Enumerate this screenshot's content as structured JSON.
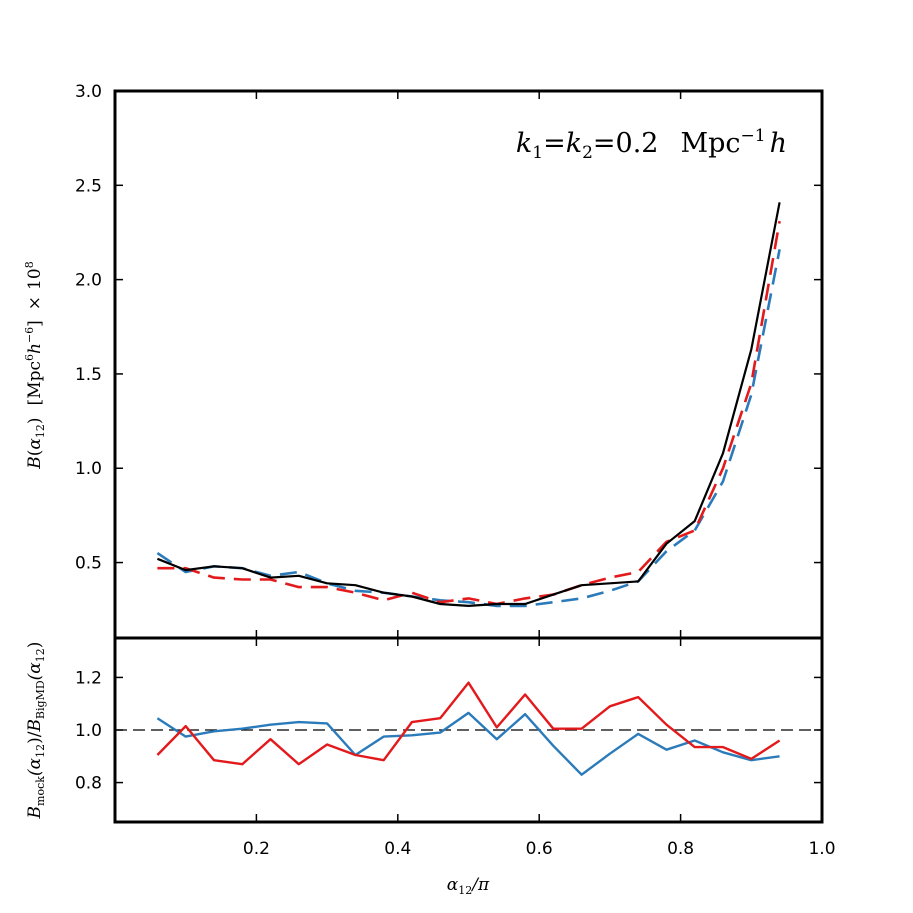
{
  "chart_data": [
    {
      "panel": "top",
      "type": "line",
      "annotation": {
        "k1": "k",
        "k1_sub": "1",
        "eq1": "=",
        "k2": "k",
        "k2_sub": "2",
        "eq2": "=0.2",
        "unit": "Mpc",
        "unit_exp": "−1",
        "unit_h": "h"
      },
      "ylabel": {
        "B": "B",
        "open": "(",
        "alpha": "α",
        "sub": "12",
        "close": ")",
        "unit_open": "[Mpc",
        "exp6": "6",
        "h": "h",
        "expm6": "−6",
        "unit_close": "]",
        "times": "×",
        "ten": "10",
        "exp8": "8"
      },
      "xlim": [
        0.0,
        1.0
      ],
      "ylim": [
        0.1,
        3.0
      ],
      "yticks": [
        "0.5",
        "1.0",
        "1.5",
        "2.0",
        "2.5",
        "3.0"
      ],
      "ytick_values": [
        0.5,
        1.0,
        1.5,
        2.0,
        2.5,
        3.0
      ],
      "x": [
        0.06,
        0.1,
        0.14,
        0.18,
        0.22,
        0.26,
        0.3,
        0.34,
        0.38,
        0.42,
        0.46,
        0.5,
        0.54,
        0.58,
        0.62,
        0.66,
        0.7,
        0.74,
        0.78,
        0.82,
        0.86,
        0.9,
        0.94
      ],
      "series": [
        {
          "name": "BigMD",
          "color": "#000000",
          "dash": "solid",
          "values": [
            0.52,
            0.46,
            0.48,
            0.47,
            0.42,
            0.43,
            0.39,
            0.38,
            0.34,
            0.32,
            0.28,
            0.27,
            0.28,
            0.28,
            0.33,
            0.38,
            0.39,
            0.4,
            0.6,
            0.72,
            1.08,
            1.63,
            2.41
          ]
        },
        {
          "name": "mock (red)",
          "color": "#e31a1c",
          "dash": "dashed",
          "values": [
            0.47,
            0.47,
            0.42,
            0.41,
            0.41,
            0.37,
            0.37,
            0.34,
            0.3,
            0.34,
            0.29,
            0.31,
            0.28,
            0.31,
            0.33,
            0.38,
            0.42,
            0.45,
            0.61,
            0.67,
            1.0,
            1.45,
            2.31
          ]
        },
        {
          "name": "mock (blue)",
          "color": "#2b7bba",
          "dash": "dashed",
          "values": [
            0.55,
            0.45,
            0.48,
            0.47,
            0.43,
            0.45,
            0.39,
            0.35,
            0.34,
            0.32,
            0.3,
            0.29,
            0.27,
            0.27,
            0.29,
            0.31,
            0.35,
            0.4,
            0.56,
            0.67,
            0.93,
            1.39,
            2.16
          ]
        }
      ]
    },
    {
      "panel": "bottom",
      "type": "line",
      "ylabel": {
        "B1": "B",
        "sub1": "mock",
        "mid": "(α",
        "s12a": "12",
        "slash": ")/",
        "B2": "B",
        "sub2": "BigMD",
        "end": "(α",
        "s12b": "12",
        "close": ")"
      },
      "xlabel": {
        "alpha": "α",
        "sub": "12",
        "rest": "/π"
      },
      "xlim": [
        0.0,
        1.0
      ],
      "ylim": [
        0.65,
        1.35
      ],
      "xticks": [
        "0.2",
        "0.4",
        "0.6",
        "0.8",
        "1.0"
      ],
      "xtick_values": [
        0.2,
        0.4,
        0.6,
        0.8,
        1.0
      ],
      "yticks": [
        "0.8",
        "1.0",
        "1.2"
      ],
      "ytick_values": [
        0.8,
        1.0,
        1.2
      ],
      "reference_line": 1.0,
      "x": [
        0.06,
        0.1,
        0.14,
        0.18,
        0.22,
        0.26,
        0.3,
        0.34,
        0.38,
        0.42,
        0.46,
        0.5,
        0.54,
        0.58,
        0.62,
        0.66,
        0.7,
        0.74,
        0.78,
        0.82,
        0.86,
        0.9,
        0.94
      ],
      "series": [
        {
          "name": "red / BigMD",
          "color": "#e31a1c",
          "values": [
            0.905,
            1.015,
            0.885,
            0.87,
            0.965,
            0.87,
            0.945,
            0.905,
            0.885,
            1.03,
            1.045,
            1.18,
            1.01,
            1.135,
            1.005,
            1.005,
            1.09,
            1.125,
            1.02,
            0.935,
            0.935,
            0.89,
            0.96
          ]
        },
        {
          "name": "blue / BigMD",
          "color": "#2b7bba",
          "values": [
            1.045,
            0.975,
            0.995,
            1.005,
            1.02,
            1.03,
            1.025,
            0.905,
            0.975,
            0.98,
            0.99,
            1.065,
            0.965,
            1.06,
            0.94,
            0.83,
            0.91,
            0.985,
            0.925,
            0.96,
            0.915,
            0.885,
            0.9
          ]
        }
      ]
    }
  ]
}
